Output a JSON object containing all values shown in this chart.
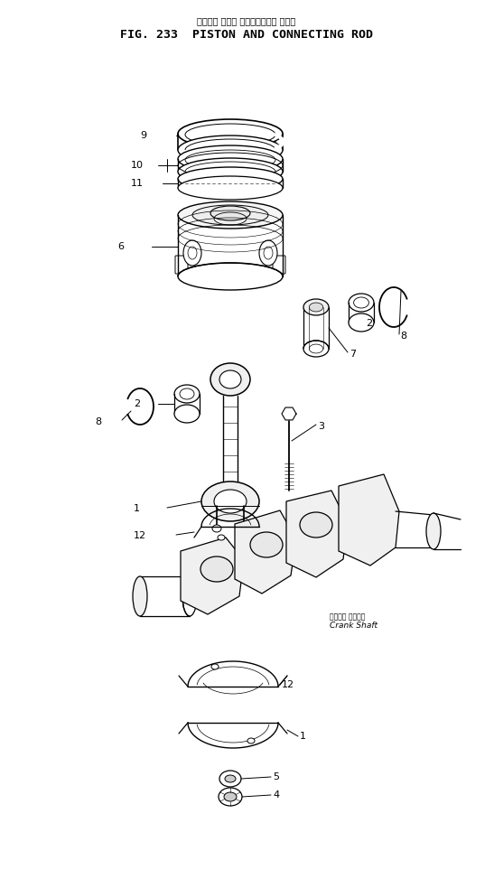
{
  "title_japanese": "ピストン および コネクティング ロッド",
  "title_english": "FIG. 233  PISTON AND CONNECTING ROD",
  "background_color": "#ffffff",
  "line_color": "#000000",
  "fig_width": 5.47,
  "fig_height": 9.73,
  "dpi": 100,
  "crankshaft_ja": "クランク シャフト",
  "crankshaft_en": "Crank Shaft"
}
